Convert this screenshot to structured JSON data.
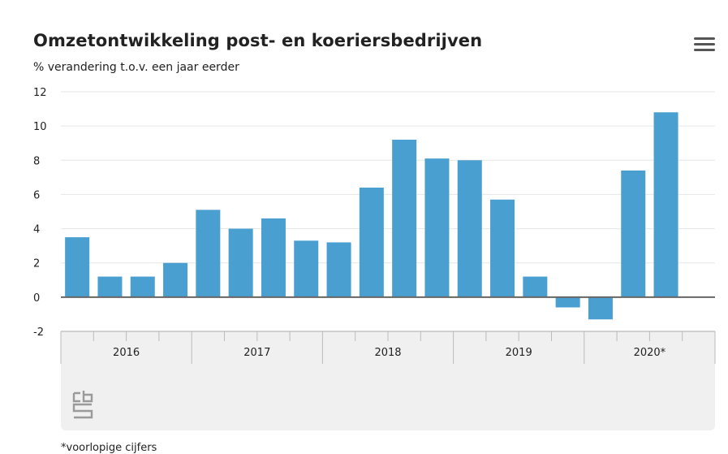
{
  "header": {
    "title": "Omzetontwikkeling post- en koeriersbedrijven",
    "subtitle": "% verandering t.o.v. een jaar eerder"
  },
  "footnote": "*voorlopige cijfers",
  "logo_icon": "cbs-logo-icon",
  "menu_icon": "hamburger-menu-icon",
  "colors": {
    "bar": "#4a9fd1",
    "axis_band": "#f0f0f0",
    "grid": "#e6e6e6",
    "zero_line": "#666666"
  },
  "chart_data": {
    "type": "bar",
    "ylim": [
      -2,
      12
    ],
    "yticks": [
      -2,
      0,
      2,
      4,
      6,
      8,
      10,
      12
    ],
    "year_groups": [
      "2016",
      "2017",
      "2018",
      "2019",
      "2020*"
    ],
    "categories": [
      "2016 Q1",
      "2016 Q2",
      "2016 Q3",
      "2016 Q4",
      "2017 Q1",
      "2017 Q2",
      "2017 Q3",
      "2017 Q4",
      "2018 Q1",
      "2018 Q2",
      "2018 Q3",
      "2018 Q4",
      "2019 Q1",
      "2019 Q2",
      "2019 Q3",
      "2019 Q4",
      "2020 Q1",
      "2020 Q2",
      "2020 Q3",
      "2020 Q4"
    ],
    "values": [
      3.5,
      1.2,
      1.2,
      2.0,
      5.1,
      4.0,
      4.6,
      3.3,
      3.2,
      6.4,
      9.2,
      8.1,
      8.0,
      5.7,
      1.2,
      -0.6,
      -1.3,
      7.4,
      10.8,
      null
    ],
    "grid": true,
    "legend": "none"
  }
}
